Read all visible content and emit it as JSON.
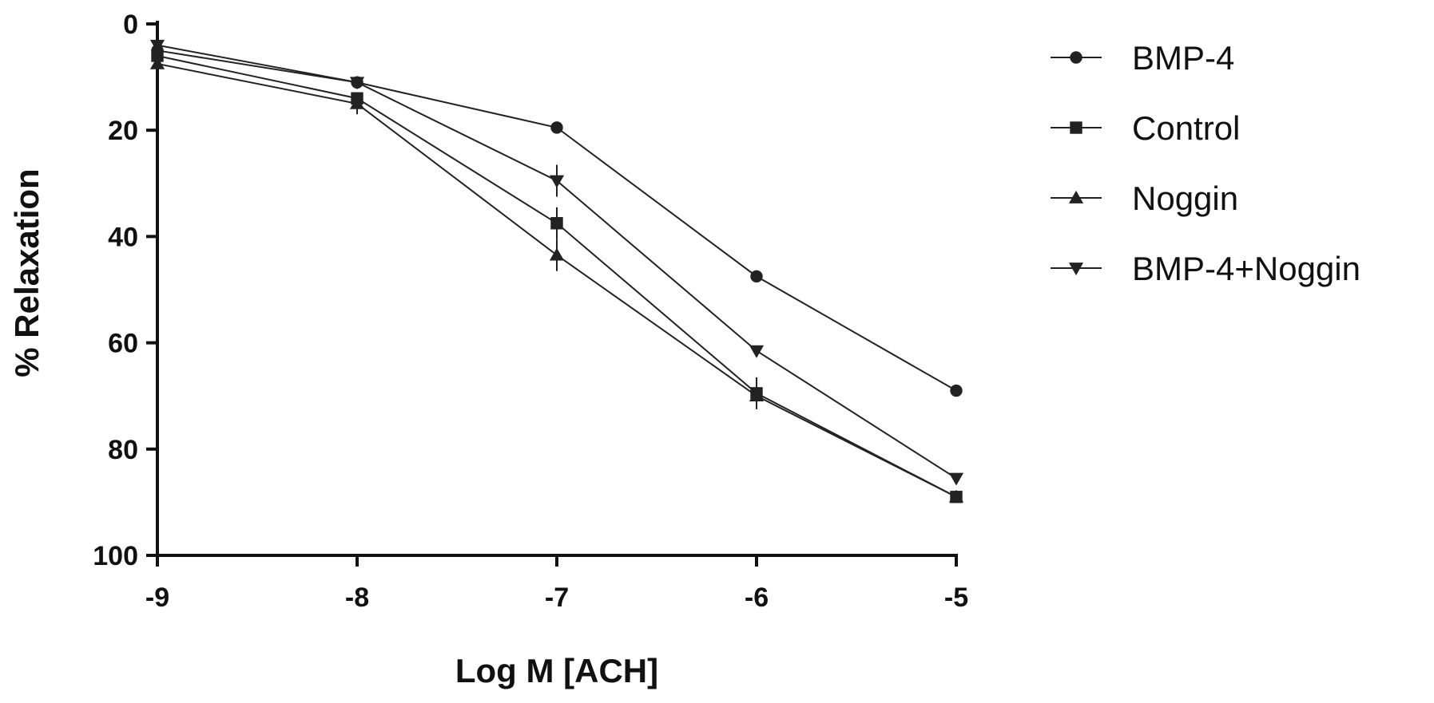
{
  "chart_data": {
    "type": "line",
    "title": "",
    "xlabel": "Log M [ACH]",
    "ylabel": "% Relaxation",
    "x": [
      -9,
      -8,
      -7,
      -6,
      -5
    ],
    "xlim": [
      -9,
      -5
    ],
    "ylim": [
      0,
      100
    ],
    "y_inverted": true,
    "x_ticks": [
      -9,
      -8,
      -7,
      -6,
      -5
    ],
    "y_ticks": [
      0,
      20,
      40,
      60,
      80,
      100
    ],
    "x_tick_labels": [
      "-9",
      "-8",
      "-7",
      "-6",
      "-5"
    ],
    "y_tick_labels": [
      "0",
      "20",
      "40",
      "60",
      "80",
      "100"
    ],
    "grid": false,
    "legend_position": "right",
    "series": [
      {
        "name": "BMP-4",
        "marker": "circle",
        "values": [
          5,
          11,
          19.5,
          47.5,
          69
        ],
        "error": [
          0,
          0,
          0,
          0.5,
          0
        ]
      },
      {
        "name": "Control",
        "marker": "square",
        "values": [
          6,
          14,
          37.5,
          69.5,
          89
        ],
        "error": [
          0,
          0,
          3,
          3,
          0
        ]
      },
      {
        "name": "Noggin",
        "marker": "triangle-up",
        "values": [
          7.5,
          15,
          43.5,
          70,
          89
        ],
        "error": [
          0,
          2,
          3,
          1,
          0
        ]
      },
      {
        "name": "BMP-4+Noggin",
        "marker": "triangle-down",
        "values": [
          4,
          11,
          29.5,
          61.5,
          85.5
        ],
        "error": [
          0,
          1,
          3,
          1,
          0
        ]
      }
    ],
    "colors": {
      "line": "#222222",
      "axis": "#111111"
    }
  }
}
